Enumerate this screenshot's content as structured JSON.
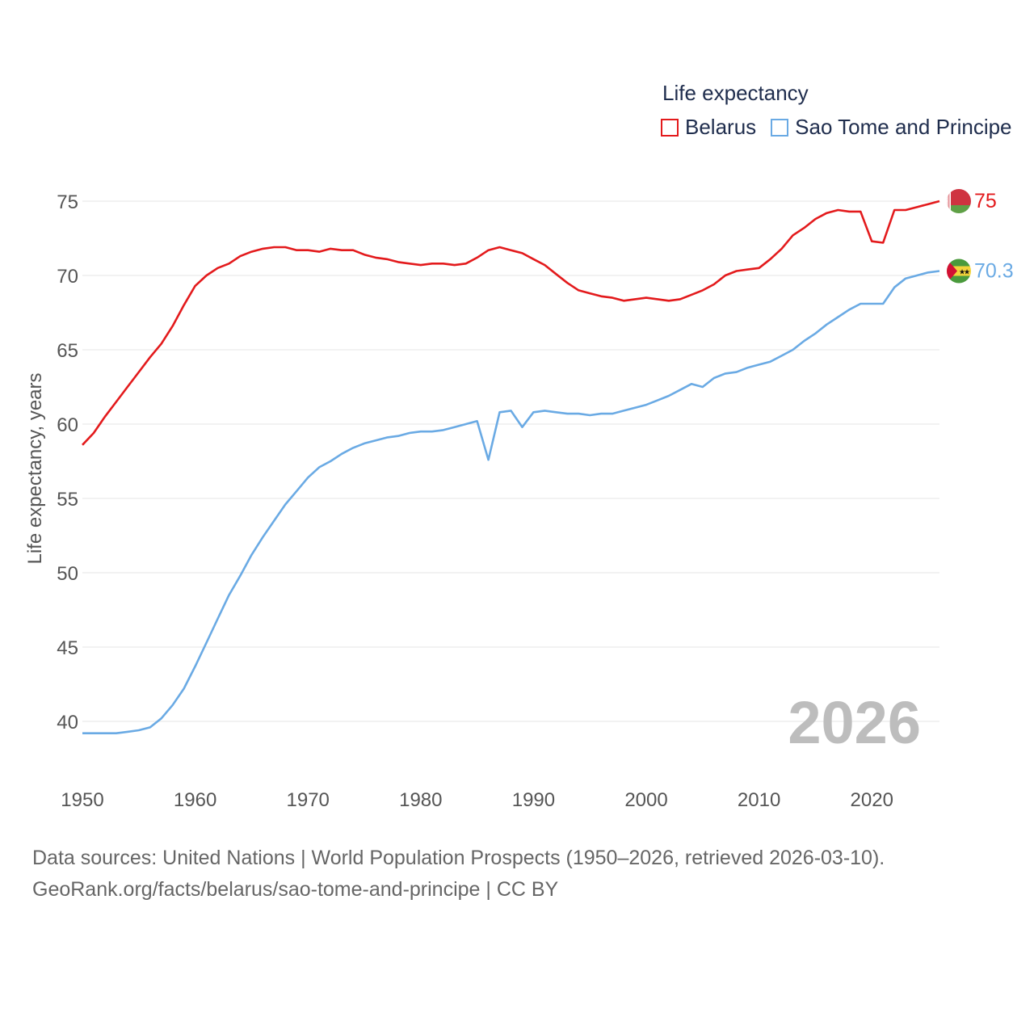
{
  "legend": {
    "title": "Life expectancy"
  },
  "source": {
    "line1": "Data sources: United Nations | World Population Prospects (1950–2026, retrieved 2026-03-10).",
    "line2": "GeoRank.org/facts/belarus/sao-tome-and-principe | CC BY"
  },
  "chart_data": {
    "type": "line",
    "title": "Life expectancy",
    "ylabel": "Life expectancy, years",
    "xlabel": "",
    "xlim": [
      1950,
      2026
    ],
    "ylim": [
      37,
      77
    ],
    "x_ticks": [
      1950,
      1960,
      1970,
      1980,
      1990,
      2000,
      2010,
      2020
    ],
    "y_ticks": [
      40,
      45,
      50,
      55,
      60,
      65,
      70,
      75
    ],
    "year_label": "2026",
    "series": [
      {
        "name": "Belarus",
        "color": "#e31a1c",
        "end_label": "75",
        "flag": "belarus-flag",
        "x": [
          1950,
          1951,
          1952,
          1953,
          1954,
          1955,
          1956,
          1957,
          1958,
          1959,
          1960,
          1961,
          1962,
          1963,
          1964,
          1965,
          1966,
          1967,
          1968,
          1969,
          1970,
          1971,
          1972,
          1973,
          1974,
          1975,
          1976,
          1977,
          1978,
          1979,
          1980,
          1981,
          1982,
          1983,
          1984,
          1985,
          1986,
          1987,
          1988,
          1989,
          1990,
          1991,
          1992,
          1993,
          1994,
          1995,
          1996,
          1997,
          1998,
          1999,
          2000,
          2001,
          2002,
          2003,
          2004,
          2005,
          2006,
          2007,
          2008,
          2009,
          2010,
          2011,
          2012,
          2013,
          2014,
          2015,
          2016,
          2017,
          2018,
          2019,
          2020,
          2021,
          2022,
          2023,
          2024,
          2025,
          2026
        ],
        "values": [
          58.6,
          59.4,
          60.5,
          61.5,
          62.5,
          63.5,
          64.5,
          65.4,
          66.6,
          68.0,
          69.3,
          70.0,
          70.5,
          70.8,
          71.3,
          71.6,
          71.8,
          71.9,
          71.9,
          71.7,
          71.7,
          71.6,
          71.8,
          71.7,
          71.7,
          71.4,
          71.2,
          71.1,
          70.9,
          70.8,
          70.7,
          70.8,
          70.8,
          70.7,
          70.8,
          71.2,
          71.7,
          71.9,
          71.7,
          71.5,
          71.1,
          70.7,
          70.1,
          69.5,
          69.0,
          68.8,
          68.6,
          68.5,
          68.3,
          68.4,
          68.5,
          68.4,
          68.3,
          68.4,
          68.7,
          69.0,
          69.4,
          70.0,
          70.3,
          70.4,
          70.5,
          71.1,
          71.8,
          72.7,
          73.2,
          73.8,
          74.2,
          74.4,
          74.3,
          74.3,
          72.3,
          72.2,
          74.4,
          74.4,
          74.6,
          74.8,
          75.0
        ]
      },
      {
        "name": "Sao Tome and Principe",
        "color": "#6aaae4",
        "end_label": "70.3",
        "flag": "sao-tome-flag",
        "x": [
          1950,
          1951,
          1952,
          1953,
          1954,
          1955,
          1956,
          1957,
          1958,
          1959,
          1960,
          1961,
          1962,
          1963,
          1964,
          1965,
          1966,
          1967,
          1968,
          1969,
          1970,
          1971,
          1972,
          1973,
          1974,
          1975,
          1976,
          1977,
          1978,
          1979,
          1980,
          1981,
          1982,
          1983,
          1984,
          1985,
          1986,
          1987,
          1988,
          1989,
          1990,
          1991,
          1992,
          1993,
          1994,
          1995,
          1996,
          1997,
          1998,
          1999,
          2000,
          2001,
          2002,
          2003,
          2004,
          2005,
          2006,
          2007,
          2008,
          2009,
          2010,
          2011,
          2012,
          2013,
          2014,
          2015,
          2016,
          2017,
          2018,
          2019,
          2020,
          2021,
          2022,
          2023,
          2024,
          2025,
          2026
        ],
        "values": [
          39.2,
          39.2,
          39.2,
          39.2,
          39.3,
          39.4,
          39.6,
          40.2,
          41.1,
          42.2,
          43.7,
          45.3,
          46.9,
          48.5,
          49.8,
          51.2,
          52.4,
          53.5,
          54.6,
          55.5,
          56.4,
          57.1,
          57.5,
          58.0,
          58.4,
          58.7,
          58.9,
          59.1,
          59.2,
          59.4,
          59.5,
          59.5,
          59.6,
          59.8,
          60.0,
          60.2,
          57.6,
          60.8,
          60.9,
          59.8,
          60.8,
          60.9,
          60.8,
          60.7,
          60.7,
          60.6,
          60.7,
          60.7,
          60.9,
          61.1,
          61.3,
          61.6,
          61.9,
          62.3,
          62.7,
          62.5,
          63.1,
          63.4,
          63.5,
          63.8,
          64.0,
          64.2,
          64.6,
          65.0,
          65.6,
          66.1,
          66.7,
          67.2,
          67.7,
          68.1,
          68.1,
          68.1,
          69.2,
          69.8,
          70.0,
          70.2,
          70.3
        ]
      }
    ]
  }
}
